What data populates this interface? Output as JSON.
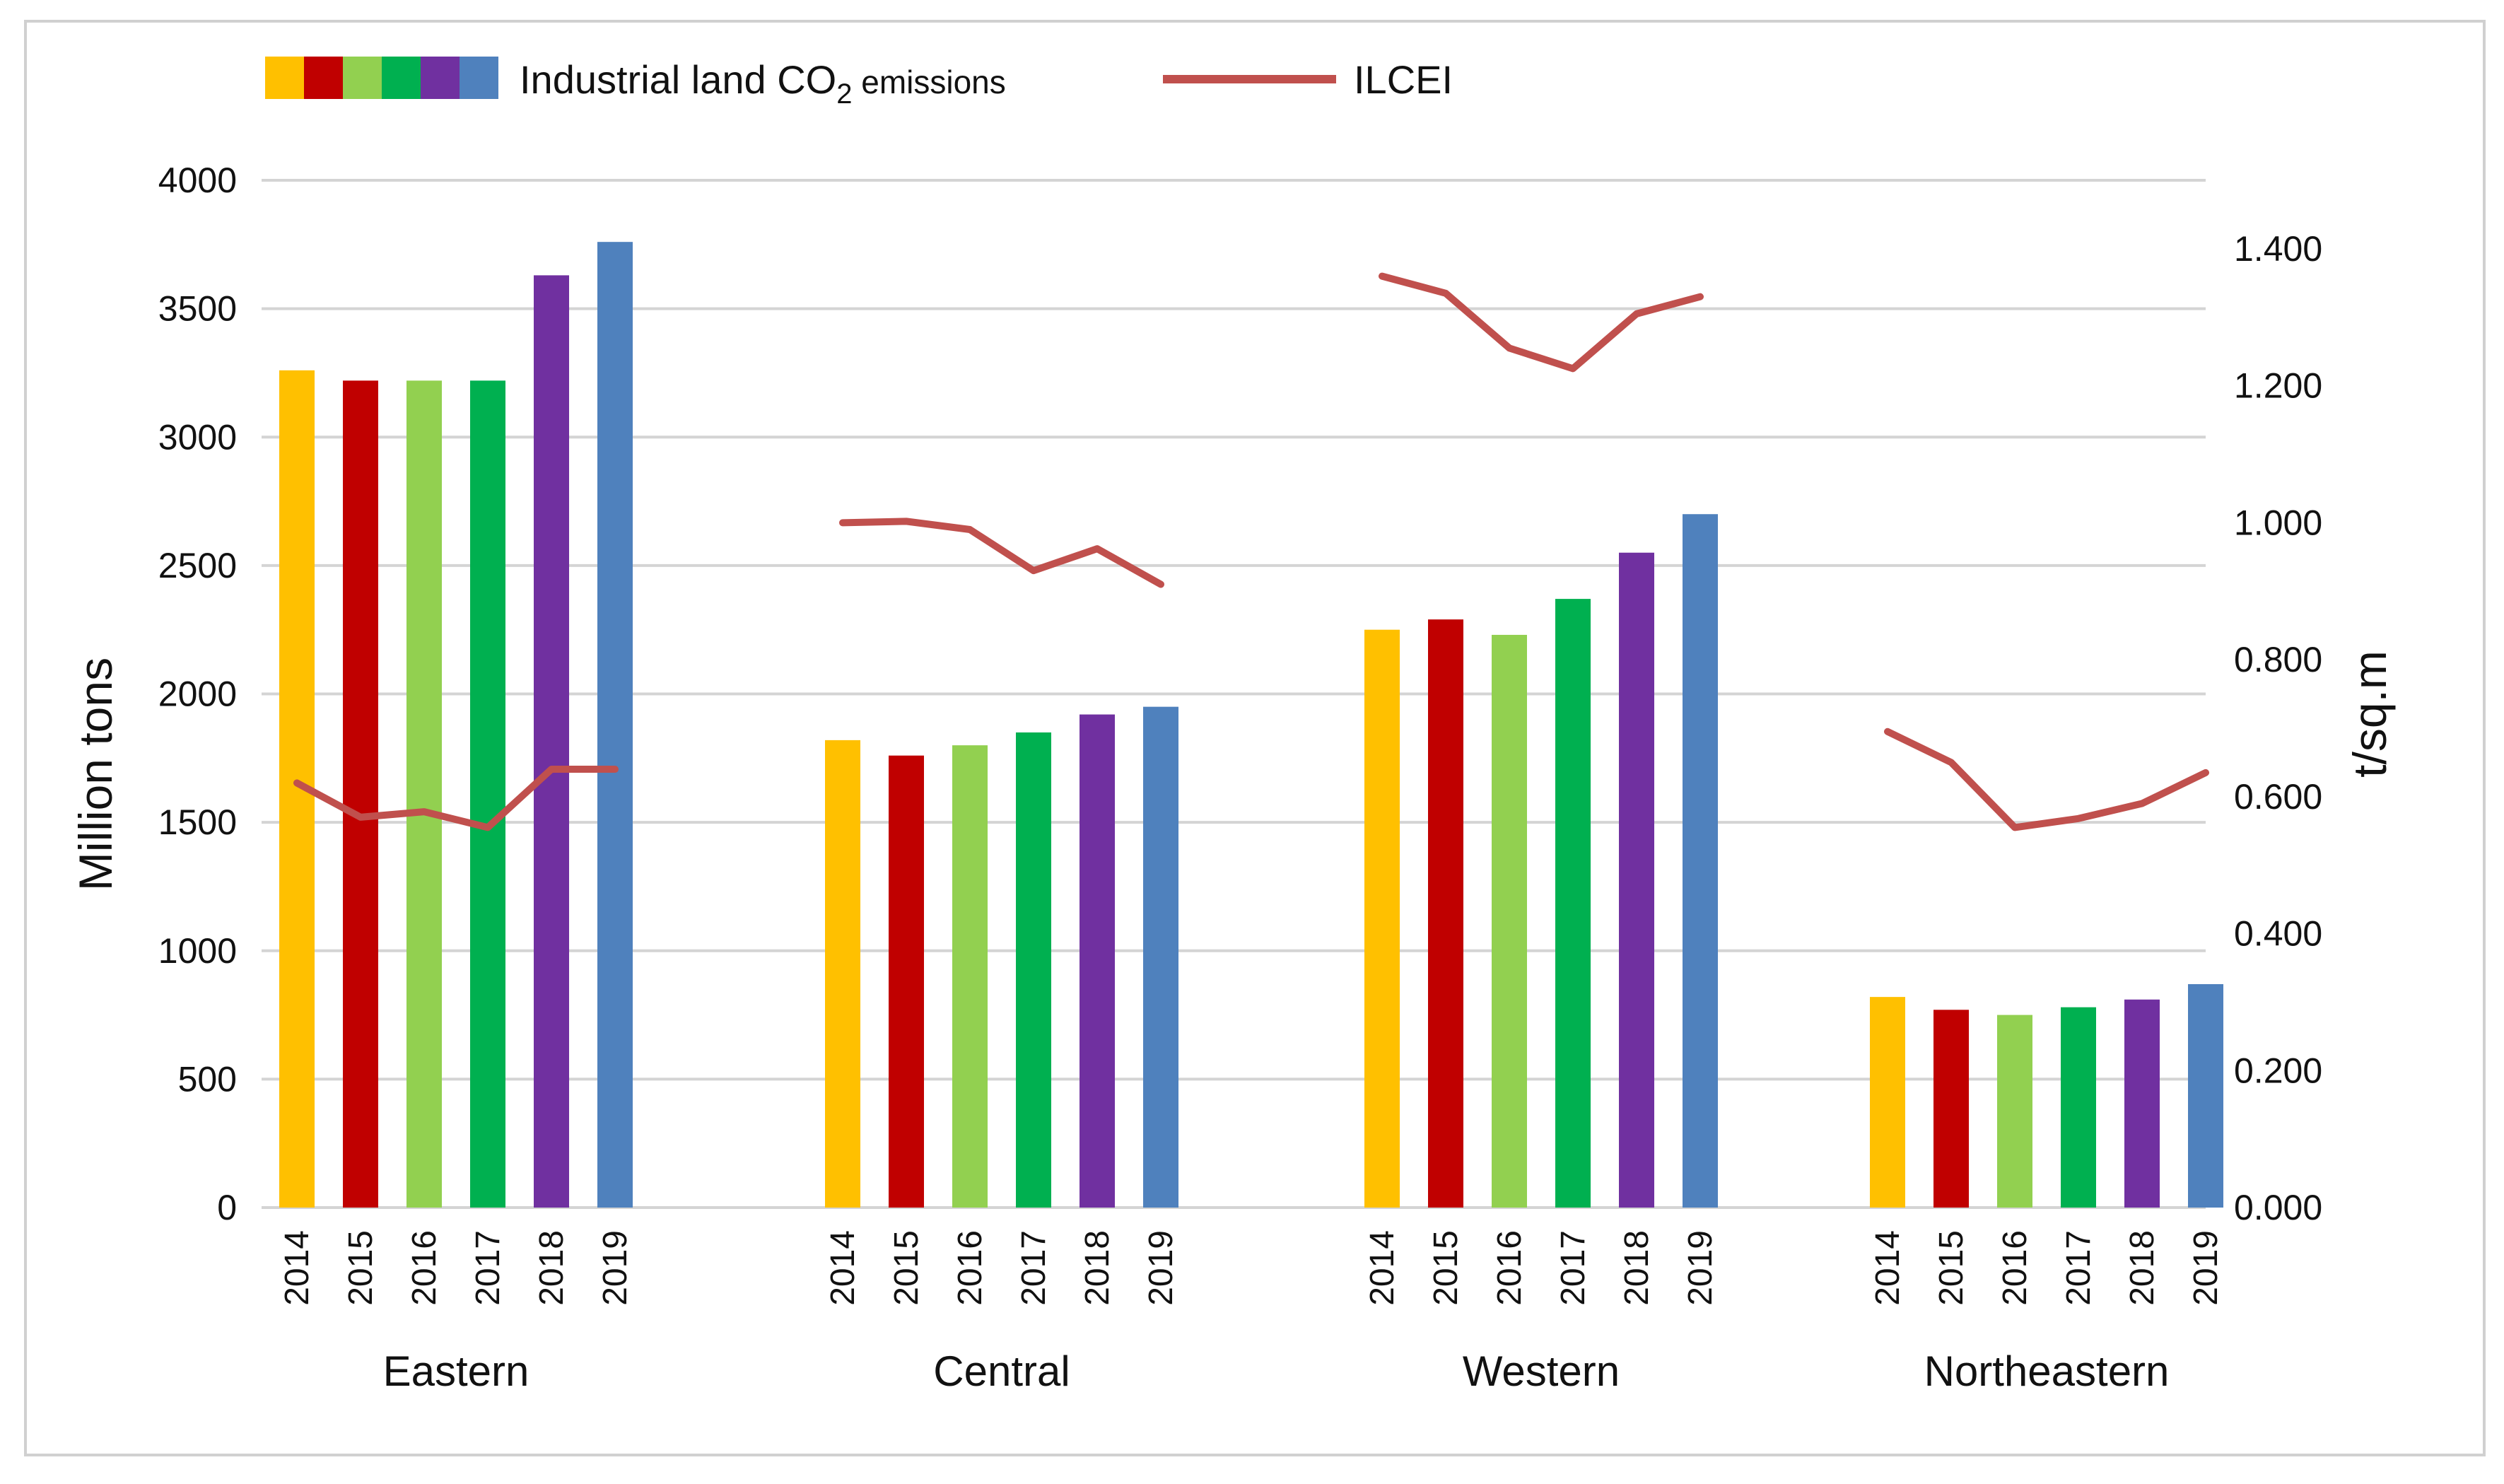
{
  "chart_data": {
    "type": "bar",
    "groups": [
      "Eastern",
      "Central",
      "Western",
      "Northeastern"
    ],
    "categories": [
      "2014",
      "2015",
      "2016",
      "2017",
      "2018",
      "2019"
    ],
    "year_colors": [
      "#ffc000",
      "#c00000",
      "#92d050",
      "#00b050",
      "#7030a0",
      "#4f81bd"
    ],
    "bar_series": {
      "name": "Industrial land CO2 emissions",
      "values": [
        [
          3260,
          3220,
          3220,
          3220,
          3630,
          3760
        ],
        [
          1820,
          1760,
          1800,
          1850,
          1920,
          1950
        ],
        [
          2250,
          2290,
          2230,
          2370,
          2550,
          2700
        ],
        [
          820,
          770,
          750,
          780,
          810,
          870
        ]
      ]
    },
    "line_series": {
      "name": "ILCEI",
      "color": "#c0504d",
      "values": [
        [
          0.62,
          0.57,
          0.578,
          0.555,
          0.64,
          0.64
        ],
        [
          1.0,
          1.002,
          0.99,
          0.93,
          0.962,
          0.91
        ],
        [
          1.36,
          1.335,
          1.255,
          1.225,
          1.305,
          1.33
        ],
        [
          0.695,
          0.65,
          0.555,
          0.568,
          0.59,
          0.635
        ]
      ]
    },
    "left_axis": {
      "label": "Million tons",
      "range": [
        0,
        4000
      ],
      "ticks": [
        "0",
        "500",
        "1000",
        "1500",
        "2000",
        "2500",
        "3000",
        "3500",
        "4000"
      ]
    },
    "right_axis": {
      "label": "t/sq.m",
      "range": [
        0,
        1.5
      ],
      "ticks": [
        "0.000",
        "0.200",
        "0.400",
        "0.600",
        "0.800",
        "1.000",
        "1.200",
        "1.400"
      ]
    },
    "legend": {
      "position": "top-left",
      "bar_label_main": "Industrial land CO",
      "bar_label_sub": "2",
      "bar_label_suffix": " emissions",
      "line_label": "ILCEI"
    },
    "grid": true
  }
}
